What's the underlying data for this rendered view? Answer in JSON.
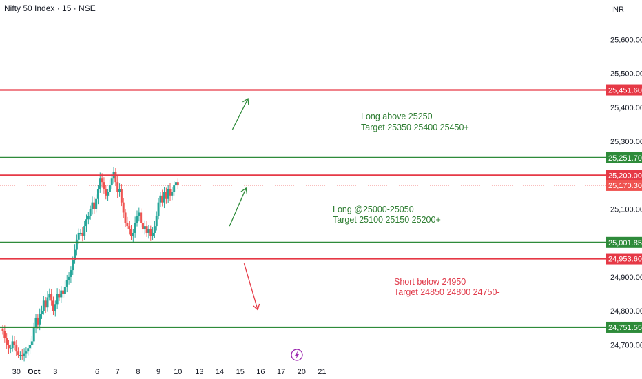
{
  "header": {
    "title": "Nifty 50 Index · 15 · NSE",
    "currency": "INR"
  },
  "colors": {
    "up": "#26a69a",
    "down": "#ef5350",
    "level_red": "#e63946",
    "level_green": "#2e8b3a",
    "note_green": "#2e7d32",
    "note_red": "#e03a4a",
    "current_price_line": "#ef5350",
    "event_icon": "#9c27b0"
  },
  "chart_data": {
    "type": "candlestick",
    "title": "Nifty 50 Index · 15 · NSE",
    "ylim": [
      24660,
      25660
    ],
    "xlim": [
      -1,
      30
    ],
    "y_ticks": [
      "25,600.00",
      "25,500.00",
      "25,400.00",
      "25,300.00",
      "25,100.00",
      "24,900.00",
      "24,800.00",
      "24,700.00"
    ],
    "y_tick_values": [
      25600,
      25500,
      25400,
      25300,
      25100,
      24900,
      24800,
      24700
    ],
    "x_ticks": [
      {
        "label": "30",
        "x": -0.3
      },
      {
        "label": "Oct",
        "x": 0.6
      },
      {
        "label": "3",
        "x": 1.7
      },
      {
        "label": "6",
        "x": 3.85
      },
      {
        "label": "7",
        "x": 4.9
      },
      {
        "label": "8",
        "x": 5.95
      },
      {
        "label": "9",
        "x": 7.0
      },
      {
        "label": "10",
        "x": 8.0
      },
      {
        "label": "13",
        "x": 9.1
      },
      {
        "label": "14",
        "x": 10.15
      },
      {
        "label": "15",
        "x": 11.2
      },
      {
        "label": "16",
        "x": 12.25
      },
      {
        "label": "17",
        "x": 13.3
      },
      {
        "label": "20",
        "x": 14.35
      },
      {
        "label": "21",
        "x": 15.4
      }
    ],
    "levels": [
      {
        "value": 25451.6,
        "label": "25,451.60",
        "color": "red"
      },
      {
        "value": 25251.7,
        "label": "25,251.70",
        "color": "green"
      },
      {
        "value": 25200.0,
        "label": "25,200.00",
        "color": "red"
      },
      {
        "value": 25001.85,
        "label": "25,001.85",
        "color": "green"
      },
      {
        "value": 24953.6,
        "label": "24,953.60",
        "color": "red"
      },
      {
        "value": 24751.55,
        "label": "24,751.55",
        "color": "green"
      }
    ],
    "current_price": {
      "value": 25170.3,
      "label": "25,170.30"
    },
    "series": [
      {
        "name": "",
        "x": [
          -1.0,
          -0.9,
          -0.8,
          -0.7,
          -0.6,
          -0.5,
          -0.4,
          -0.3,
          -0.2,
          -0.1,
          0.0,
          0.1,
          0.2,
          0.3,
          0.4,
          0.5,
          0.6,
          0.7,
          0.8,
          0.9,
          1.0,
          1.1,
          1.2,
          1.3,
          1.4,
          1.5,
          1.6,
          1.7,
          1.8,
          1.9,
          2.0,
          2.1,
          2.2,
          2.3,
          2.4,
          2.5,
          2.6,
          2.7,
          2.8,
          2.9,
          3.0,
          3.1,
          3.2,
          3.3,
          3.4,
          3.5,
          3.6,
          3.7,
          3.8,
          3.9,
          4.0,
          4.1,
          4.2,
          4.3,
          4.4,
          4.5,
          4.6,
          4.7,
          4.8,
          4.9,
          5.0,
          5.1,
          5.2,
          5.3,
          5.4,
          5.5,
          5.6,
          5.7,
          5.8,
          5.9,
          6.0,
          6.1,
          6.2,
          6.3,
          6.4,
          6.5,
          6.6,
          6.7,
          6.8,
          6.9,
          7.0,
          7.1,
          7.2,
          7.3,
          7.4,
          7.5,
          7.6,
          7.7,
          7.8,
          7.9,
          8.0
        ],
        "close": [
          24740,
          24720,
          24700,
          24690,
          24690,
          24710,
          24700,
          24680,
          24670,
          24670,
          24668,
          24675,
          24680,
          24690,
          24700,
          24710,
          24750,
          24780,
          24760,
          24790,
          24800,
          24830,
          24810,
          24840,
          24850,
          24830,
          24800,
          24820,
          24850,
          24840,
          24860,
          24850,
          24870,
          24890,
          24900,
          24920,
          24950,
          24980,
          25010,
          25030,
          25030,
          25020,
          25050,
          25070,
          25080,
          25100,
          25120,
          25100,
          25130,
          25160,
          25190,
          25180,
          25160,
          25140,
          25150,
          25170,
          25190,
          25210,
          25180,
          25150,
          25160,
          25120,
          25090,
          25060,
          25050,
          25040,
          25020,
          25030,
          25060,
          25080,
          25090,
          25060,
          25040,
          25050,
          25030,
          25040,
          25020,
          25030,
          25050,
          25080,
          25120,
          25140,
          25120,
          25150,
          25130,
          25160,
          25140,
          25150,
          25170,
          25180,
          25170
        ]
      }
    ],
    "annotations": [
      {
        "text": "Long above 25250",
        "color": "green"
      },
      {
        "text": "Target 25350 25400 25450+",
        "color": "green"
      },
      {
        "text": "Long @25000-25050",
        "color": "green"
      },
      {
        "text": "Target 25100 25150 25200+",
        "color": "green"
      },
      {
        "text": "Short below 24950",
        "color": "red"
      },
      {
        "text": "Target 24850 24800 24750-",
        "color": "red"
      }
    ],
    "arrows": [
      {
        "color": "green",
        "from": [
          10.8,
          25335
        ],
        "to": [
          11.6,
          25426
        ]
      },
      {
        "color": "green",
        "from": [
          10.65,
          25050
        ],
        "to": [
          11.5,
          25162
        ]
      },
      {
        "color": "red",
        "from": [
          11.4,
          24940
        ],
        "to": [
          12.1,
          24803
        ]
      }
    ],
    "grid": false,
    "legend": "none"
  }
}
